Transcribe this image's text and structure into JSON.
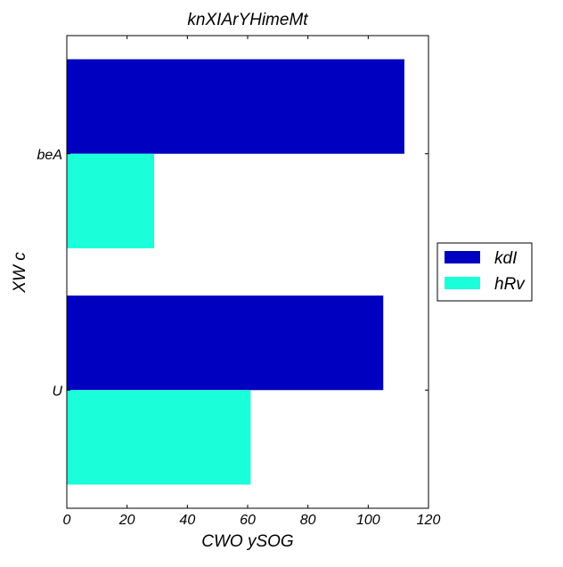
{
  "chart_data": {
    "type": "bar",
    "orientation": "horizontal",
    "title": "knXIArYHimeMt",
    "xlabel": "CWO ySOG",
    "ylabel": "XW  c",
    "categories": [
      "U",
      "beA"
    ],
    "series": [
      {
        "name": "kdI",
        "values": [
          105,
          112
        ],
        "color": "#0000c0"
      },
      {
        "name": "hRv",
        "values": [
          61,
          29
        ],
        "color": "#1affd9"
      }
    ],
    "xlim": [
      0,
      120
    ],
    "xticks": [
      0,
      20,
      40,
      60,
      80,
      100,
      120
    ],
    "grid": false,
    "legend_position": "right"
  }
}
